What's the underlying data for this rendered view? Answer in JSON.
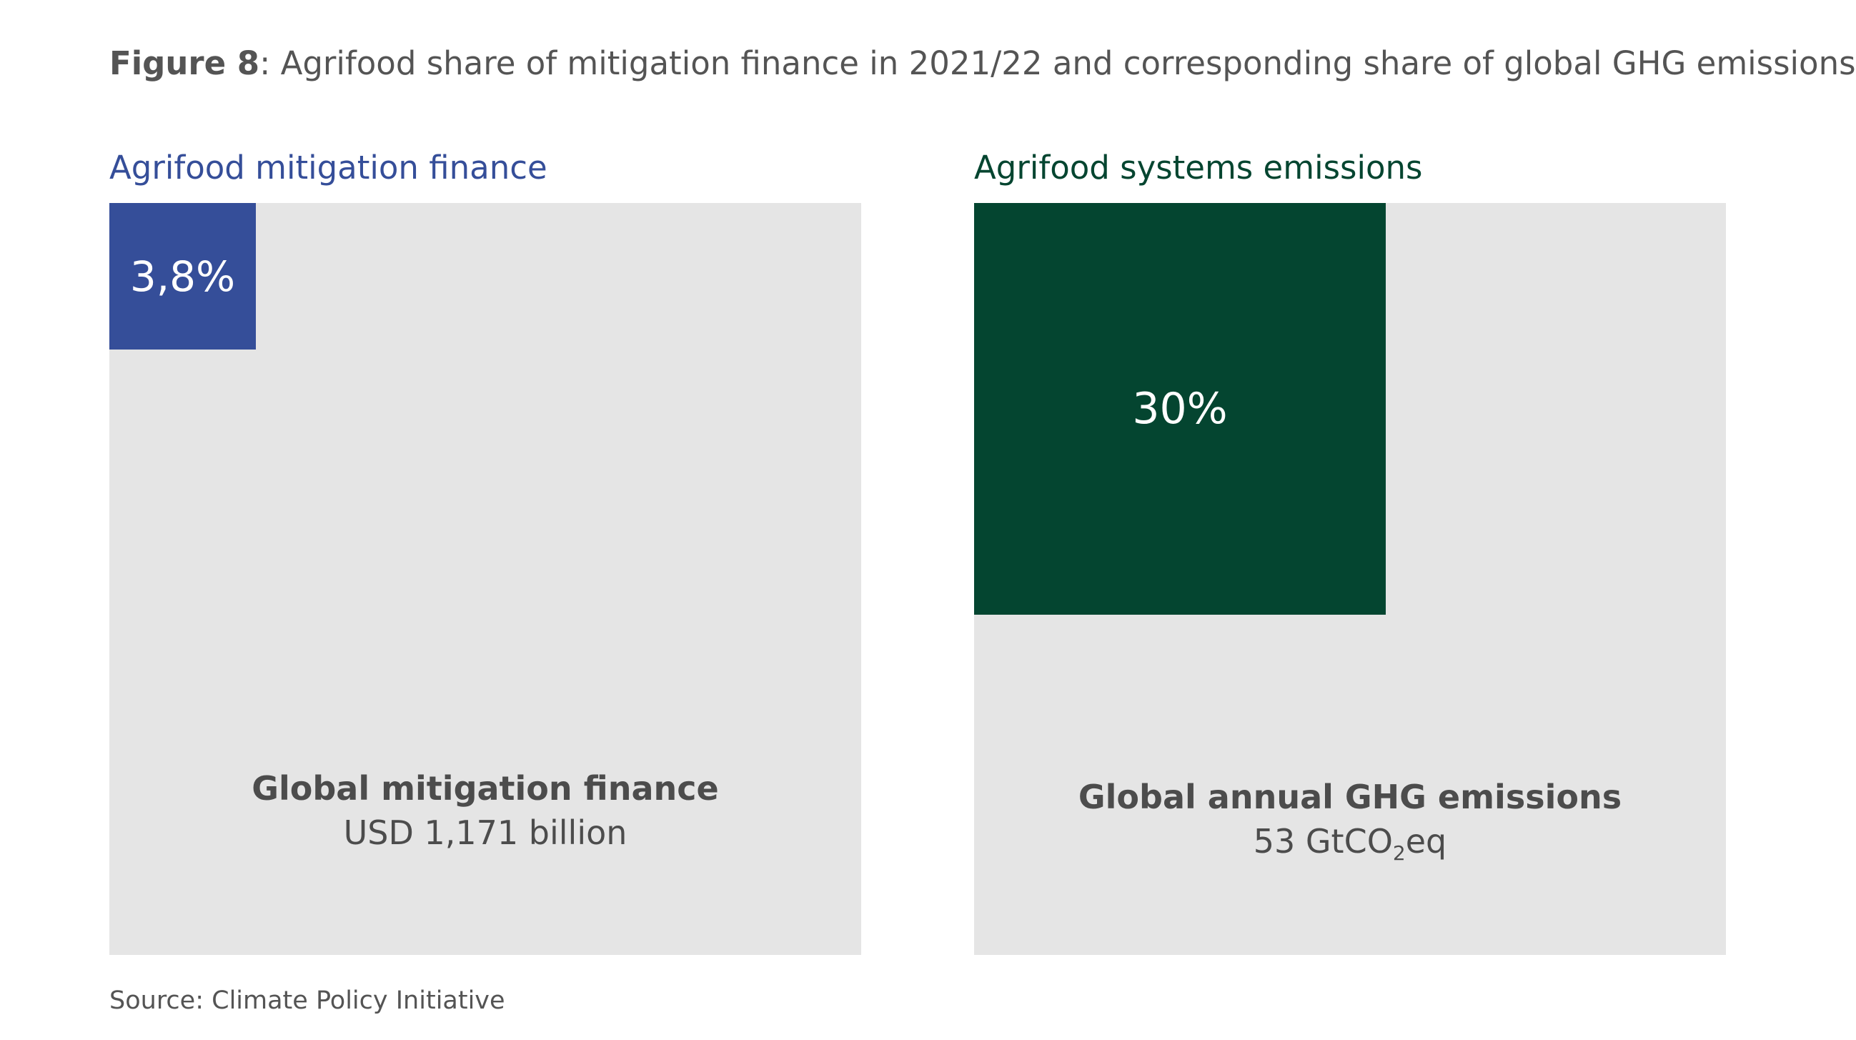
{
  "title": {
    "label": "Figure 8",
    "text": ": Agrifood share of mitigation finance in 2021/22 and corresponding share of global GHG emissions"
  },
  "source": "Source: Climate Policy Initiative",
  "chart_data": [
    {
      "type": "area",
      "title": "Agrifood mitigation finance",
      "share_percent": 3.8,
      "share_label": "3,8%",
      "total_name": "Global mitigation finance",
      "total_value": "USD 1,171 billion",
      "colors": {
        "share": "#354e99",
        "total": "#e5e5e5",
        "title": "#354e99"
      }
    },
    {
      "type": "area",
      "title": "Agrifood systems emissions",
      "share_percent": 30,
      "share_label": "30%",
      "total_name": "Global annual GHG emissions",
      "total_value_prefix": "53 GtCO",
      "total_value_sub": "2",
      "total_value_suffix": "eq",
      "colors": {
        "share": "#044530",
        "total": "#e5e5e5",
        "title": "#044530"
      }
    }
  ]
}
